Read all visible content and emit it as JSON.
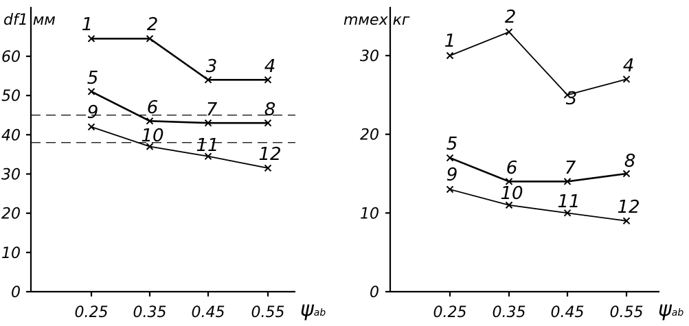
{
  "chart_data": [
    {
      "type": "line",
      "ylabel": "df1 мм",
      "x_unit_symbol": "ψ",
      "x_unit_subscript": "ab",
      "x": [
        0.25,
        0.35,
        0.45,
        0.55
      ],
      "x_tick_labels": [
        "0.25",
        "0.35",
        "0.45",
        "0.55"
      ],
      "ylim": [
        0,
        70
      ],
      "y_ticks": [
        0,
        10,
        20,
        30,
        40,
        50,
        60
      ],
      "reference_lines": [
        45,
        38
      ],
      "series": [
        {
          "values": [
            64.5,
            64.5,
            54,
            54
          ],
          "point_labels": [
            "1",
            "2",
            "3",
            "4"
          ]
        },
        {
          "values": [
            51,
            43.5,
            43,
            43
          ],
          "point_labels": [
            "5",
            "6",
            "7",
            "8"
          ]
        },
        {
          "values": [
            42,
            37,
            34.5,
            31.5
          ],
          "point_labels": [
            "9",
            "10",
            "11",
            "12"
          ]
        }
      ]
    },
    {
      "type": "line",
      "ylabel": "mмех кг",
      "x_unit_symbol": "ψ",
      "x_unit_subscript": "ab",
      "x": [
        0.25,
        0.35,
        0.45,
        0.55
      ],
      "x_tick_labels": [
        "0.25",
        "0.35",
        "0.45",
        "0.55"
      ],
      "ylim": [
        0,
        35
      ],
      "y_ticks": [
        0,
        10,
        20,
        30
      ],
      "reference_lines": [],
      "series": [
        {
          "values": [
            30,
            33,
            25,
            27
          ],
          "point_labels": [
            "1",
            "2",
            "3",
            "4"
          ]
        },
        {
          "values": [
            17,
            14,
            14,
            15
          ],
          "point_labels": [
            "5",
            "6",
            "7",
            "8"
          ]
        },
        {
          "values": [
            13,
            11,
            10,
            9
          ],
          "point_labels": [
            "9",
            "10",
            "11",
            "12"
          ]
        }
      ]
    }
  ]
}
